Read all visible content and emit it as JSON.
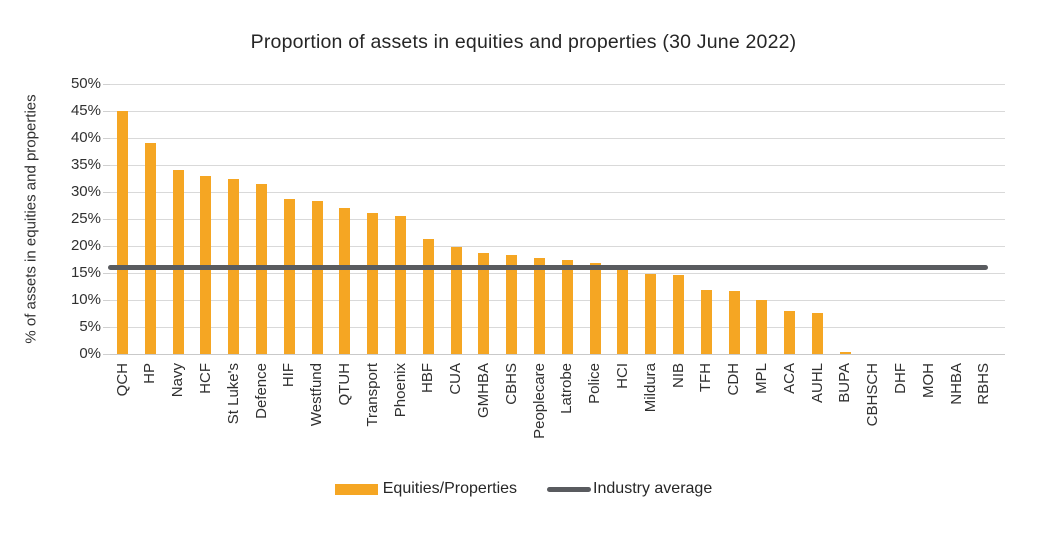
{
  "title": "Proportion of assets in equities and properties (30 June 2022)",
  "y_axis": {
    "label": "% of assets in equities and properties",
    "ticks": [
      "50%",
      "45%",
      "40%",
      "35%",
      "30%",
      "25%",
      "20%",
      "15%",
      "10%",
      "5%",
      "0%"
    ]
  },
  "legend": {
    "items": [
      {
        "label": "Equities/Properties",
        "swatch": "bar-swatch"
      },
      {
        "label": "Industry average",
        "swatch": "line-swatch"
      }
    ],
    "position": "bottom-center"
  },
  "colors": {
    "bar": "#f5a623",
    "industry_line": "#595b5f",
    "gridline": "#d9d9d9",
    "text": "#303030",
    "title_text": "#262626"
  },
  "chart_data": {
    "type": "bar",
    "title": "Proportion of assets in equities and properties (30 June 2022)",
    "xlabel": "",
    "ylabel": "% of assets in equities and properties",
    "unit": "%",
    "ylim": [
      0,
      50
    ],
    "ytick_step": 5,
    "grid": true,
    "legend_position": "bottom",
    "categories": [
      "QCH",
      "HP",
      "Navy",
      "HCF",
      "St Luke's",
      "Defence",
      "HIF",
      "Westfund",
      "QTUH",
      "Transport",
      "Phoenix",
      "HBF",
      "CUA",
      "GMHBA",
      "CBHS",
      "Peoplecare",
      "Latrobe",
      "Police",
      "HCI",
      "Mildura",
      "NIB",
      "TFH",
      "CDH",
      "MPL",
      "ACA",
      "AUHL",
      "BUPA",
      "CBHSCH",
      "DHF",
      "MOH",
      "NHBA",
      "RBHS"
    ],
    "series": [
      {
        "name": "Equities/Properties",
        "type": "bar",
        "values": [
          45,
          39,
          34,
          33,
          32.5,
          31.5,
          28.7,
          28.4,
          27,
          26.2,
          25.6,
          21.3,
          19.8,
          18.7,
          18.4,
          17.8,
          17.4,
          16.8,
          15.6,
          14.9,
          14.7,
          11.8,
          11.6,
          10,
          7.9,
          7.6,
          0.4,
          0,
          0,
          0,
          0,
          0
        ]
      },
      {
        "name": "Industry average",
        "type": "line",
        "value": 16
      }
    ]
  }
}
